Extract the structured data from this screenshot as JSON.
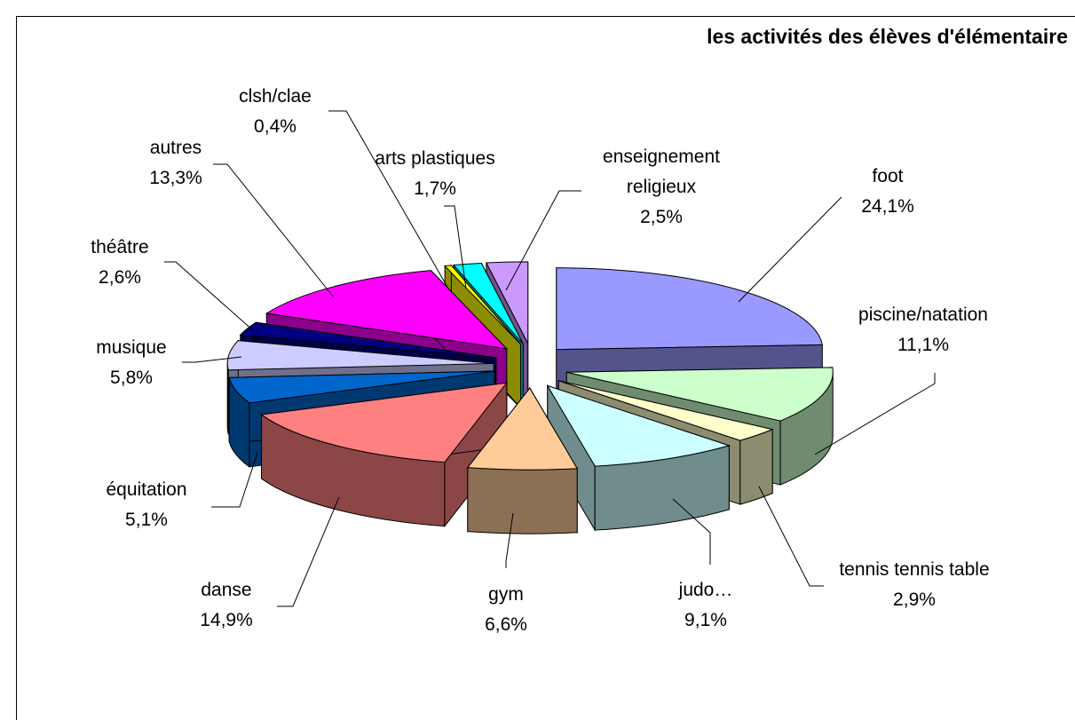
{
  "chart_data": {
    "type": "pie3d",
    "title": "les activités des élèves d'élémentaire",
    "categories": [
      "foot",
      "piscine/natation",
      "tennis tennis table",
      "judo…",
      "gym",
      "danse",
      "équitation",
      "musique",
      "théâtre",
      "autres",
      "clsh/clae",
      "arts plastiques",
      "enseignement religieux"
    ],
    "values": [
      24.1,
      11.1,
      2.9,
      9.1,
      6.6,
      14.9,
      5.1,
      5.8,
      2.6,
      13.3,
      0.4,
      1.7,
      2.5
    ],
    "value_labels": [
      "24,1%",
      "11,1%",
      "2,9%",
      "9,1%",
      "6,6%",
      "14,9%",
      "5,1%",
      "5,8%",
      "2,6%",
      "13,3%",
      "0,4%",
      "1,7%",
      "2,5%"
    ],
    "colors": [
      "#9999ff",
      "#ccffcc",
      "#ffffcc",
      "#ccffff",
      "#ffcc99",
      "#ff8080",
      "#0066cc",
      "#ccccff",
      "#000080",
      "#ff00ff",
      "#ffff00",
      "#00ffff",
      "#cc99ff"
    ]
  }
}
